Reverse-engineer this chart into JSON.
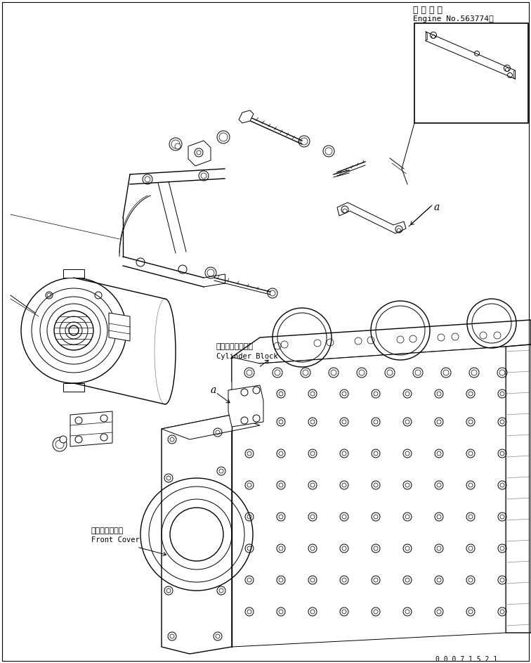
{
  "background_color": "#ffffff",
  "line_color": "#000000",
  "title_top_jp": "適 用 号 機",
  "title_top_en": "Engine No.563774～",
  "label_cylinder_jp": "シリンダブロック",
  "label_cylinder_en": "Cylinder Block",
  "label_front_jp": "フロントカバー",
  "label_front_en": "Front Cover",
  "label_a": "a",
  "doc_number": "0 0 0 7 1 5 2 1",
  "fig_width": 7.56,
  "fig_height": 9.43,
  "dpi": 100
}
